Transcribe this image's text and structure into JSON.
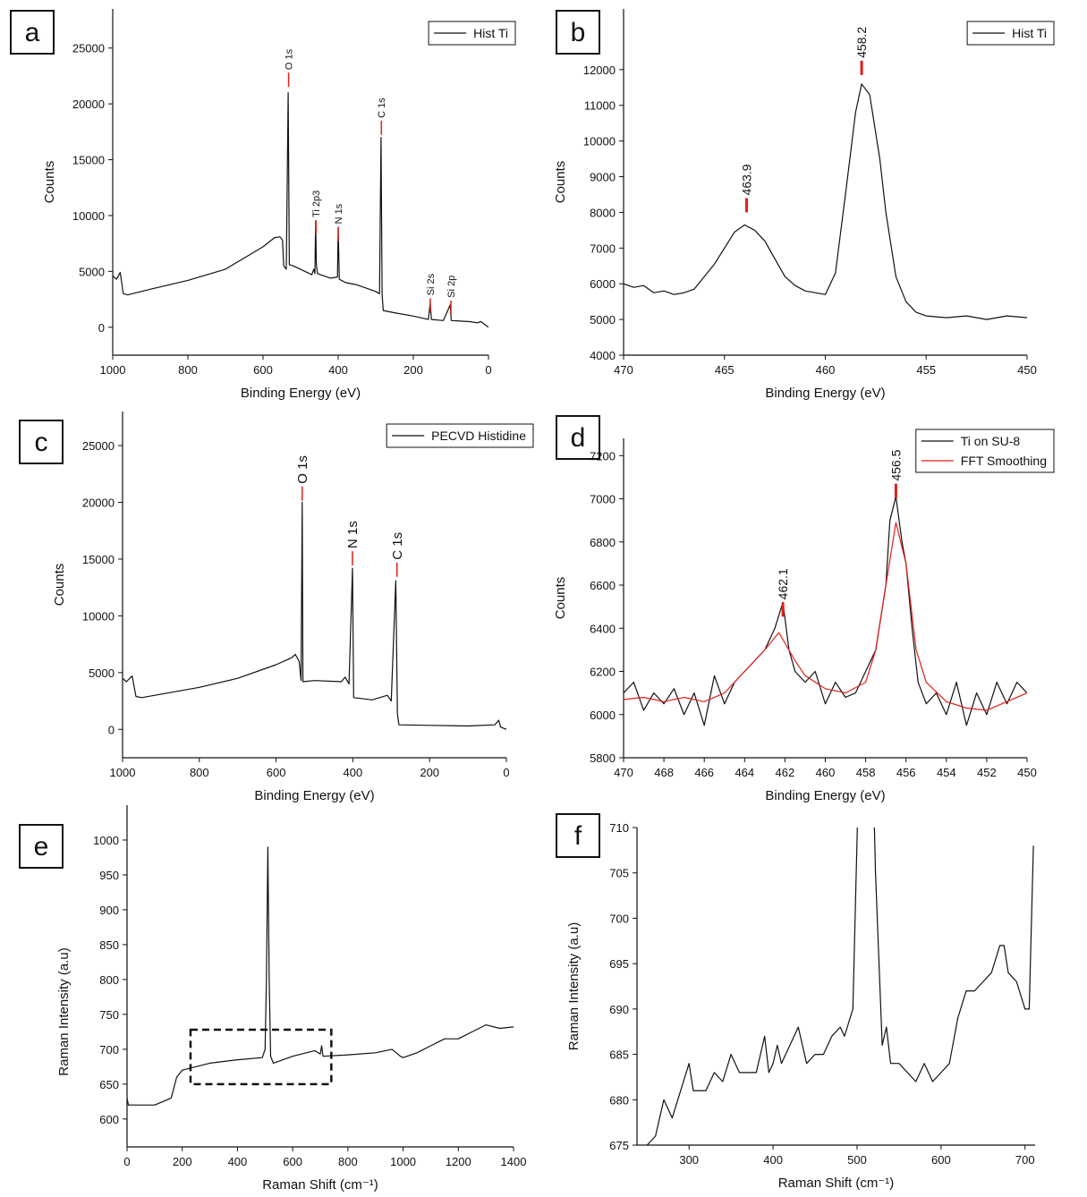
{
  "chart_data": [
    {
      "type": "line",
      "panel": "a",
      "xlabel": "Binding Energy (eV)",
      "ylabel": "Counts",
      "xlim": [
        1000,
        0
      ],
      "xticks": [
        1000,
        800,
        600,
        400,
        200,
        0
      ],
      "ylim": [
        -2500,
        28500
      ],
      "yticks": [
        0,
        5000,
        10000,
        15000,
        20000,
        25000
      ],
      "legend": "upper right",
      "peak_color": "#e0201b",
      "series": [
        {
          "name": "Hist Ti",
          "color": "#111111",
          "x": [
            1000,
            990,
            980,
            972,
            960,
            900,
            800,
            700,
            600,
            570,
            555,
            548,
            545,
            538,
            533,
            530,
            520,
            470,
            465,
            462,
            460,
            458,
            455,
            420,
            402,
            400,
            397,
            380,
            350,
            300,
            290,
            286,
            283,
            280,
            250,
            200,
            160,
            155,
            152,
            120,
            102,
            99,
            50,
            30,
            20,
            0
          ],
          "values": [
            4600,
            4300,
            4900,
            3000,
            2900,
            3400,
            4200,
            5200,
            7200,
            8000,
            8100,
            7800,
            5500,
            5200,
            21000,
            5600,
            5500,
            4700,
            5200,
            4800,
            9500,
            5600,
            4800,
            4400,
            4500,
            8900,
            4300,
            4000,
            3800,
            3200,
            3000,
            17000,
            2900,
            1500,
            1300,
            1000,
            700,
            2200,
            700,
            600,
            2000,
            600,
            500,
            400,
            500,
            0
          ]
        }
      ],
      "peaks": [
        {
          "label": "O 1s",
          "x": 532,
          "y": 22800
        },
        {
          "label": "Ti 2p3",
          "x": 459,
          "y": 9600
        },
        {
          "label": "N 1s",
          "x": 400,
          "y": 9000
        },
        {
          "label": "C 1s",
          "x": 285,
          "y": 18500
        },
        {
          "label": "Si 2s",
          "x": 155,
          "y": 2600
        },
        {
          "label": "Si 2p",
          "x": 100,
          "y": 2400
        }
      ]
    },
    {
      "type": "line",
      "panel": "b",
      "xlabel": "Binding Energy (eV)",
      "ylabel": "Counts",
      "xlim": [
        470,
        450
      ],
      "xticks": [
        470,
        465,
        460,
        455,
        450
      ],
      "ylim": [
        4000,
        13700
      ],
      "yticks": [
        4000,
        5000,
        6000,
        7000,
        8000,
        9000,
        10000,
        11000,
        12000
      ],
      "legend": "upper right",
      "peak_color": "#e0201b",
      "series": [
        {
          "name": "Hist Ti",
          "color": "#111111",
          "x": [
            470,
            469.5,
            469,
            468.5,
            468,
            467.5,
            467,
            466.5,
            466,
            465.5,
            465,
            464.5,
            464,
            463.5,
            463,
            462.5,
            462,
            461.5,
            461,
            460.5,
            460,
            459.5,
            459,
            458.5,
            458.2,
            457.8,
            457.3,
            457,
            456.5,
            456,
            455.5,
            455,
            454,
            453,
            452,
            451,
            450
          ],
          "values": [
            6000,
            5900,
            5950,
            5750,
            5800,
            5700,
            5750,
            5850,
            6200,
            6550,
            7000,
            7450,
            7650,
            7500,
            7200,
            6700,
            6200,
            5950,
            5800,
            5750,
            5700,
            6300,
            8500,
            10800,
            11600,
            11300,
            9500,
            8000,
            6200,
            5500,
            5200,
            5100,
            5050,
            5100,
            5000,
            5100,
            5050
          ]
        }
      ],
      "peaks": [
        {
          "label": "463.9",
          "x": 463.9,
          "y": 8400
        },
        {
          "label": "458.2",
          "x": 458.2,
          "y": 12250
        }
      ]
    },
    {
      "type": "line",
      "panel": "c",
      "xlabel": "Binding Energy (eV)",
      "ylabel": "Counts",
      "xlim": [
        1000,
        0
      ],
      "xticks": [
        1000,
        800,
        600,
        400,
        200,
        0
      ],
      "ylim": [
        -2500,
        28000
      ],
      "yticks": [
        0,
        5000,
        10000,
        15000,
        20000,
        25000
      ],
      "legend": "upper right",
      "peak_color": "#e0201b",
      "series": [
        {
          "name": "PECVD Histidine",
          "color": "#111111",
          "x": [
            1000,
            990,
            975,
            965,
            950,
            800,
            700,
            600,
            560,
            550,
            540,
            535,
            532,
            530,
            500,
            430,
            420,
            410,
            401,
            398,
            350,
            310,
            300,
            288,
            284,
            280,
            200,
            100,
            30,
            20,
            15,
            0
          ],
          "values": [
            4500,
            4200,
            4700,
            2900,
            2800,
            3700,
            4500,
            5700,
            6300,
            6600,
            6000,
            4300,
            20000,
            4200,
            4300,
            4200,
            4600,
            4000,
            14200,
            2800,
            2600,
            3000,
            2500,
            13100,
            1400,
            400,
            350,
            300,
            400,
            800,
            200,
            0
          ]
        }
      ],
      "peaks": [
        {
          "label": "O 1s",
          "x": 532,
          "y": 21400
        },
        {
          "label": "N 1s",
          "x": 401,
          "y": 15700
        },
        {
          "label": "C 1s",
          "x": 285,
          "y": 14700
        }
      ]
    },
    {
      "type": "line",
      "panel": "d",
      "xlabel": "Binding Energy (eV)",
      "ylabel": "Counts",
      "xlim": [
        470,
        450
      ],
      "xticks": [
        470,
        468,
        466,
        464,
        462,
        460,
        458,
        456,
        454,
        452,
        450
      ],
      "ylim": [
        5800,
        7280
      ],
      "yticks": [
        5800,
        6000,
        6200,
        6400,
        6600,
        6800,
        7000,
        7200
      ],
      "legend": "upper right",
      "peak_color": "#e0201b",
      "series": [
        {
          "name": "Ti on SU-8",
          "color": "#111111",
          "x": [
            470,
            469.5,
            469,
            468.5,
            468,
            467.5,
            467,
            466.5,
            466,
            465.5,
            465,
            464.5,
            464,
            463.5,
            463,
            462.5,
            462.1,
            461.8,
            461.5,
            461,
            460.5,
            460,
            459.5,
            459,
            458.5,
            458,
            457.5,
            457,
            456.8,
            456.5,
            456.2,
            456,
            455.7,
            455.4,
            455,
            454.5,
            454,
            453.5,
            453,
            452.5,
            452,
            451.5,
            451,
            450.5,
            450
          ],
          "values": [
            6100,
            6150,
            6020,
            6100,
            6050,
            6120,
            6000,
            6100,
            5950,
            6180,
            6050,
            6150,
            6200,
            6250,
            6300,
            6400,
            6520,
            6300,
            6200,
            6150,
            6200,
            6050,
            6150,
            6080,
            6100,
            6200,
            6300,
            6600,
            6900,
            7010,
            6800,
            6700,
            6400,
            6150,
            6050,
            6100,
            6000,
            6150,
            5950,
            6100,
            6000,
            6150,
            6050,
            6150,
            6100
          ]
        },
        {
          "name": "FFT Smoothing",
          "color": "#e0201b",
          "x": [
            470,
            469,
            468,
            467,
            466,
            465,
            464,
            463,
            462.3,
            461.5,
            461,
            460,
            459,
            458,
            457.5,
            457,
            456.5,
            456,
            455.5,
            455,
            454,
            453,
            452,
            451,
            450
          ],
          "values": [
            6070,
            6080,
            6060,
            6080,
            6060,
            6100,
            6200,
            6300,
            6380,
            6250,
            6180,
            6120,
            6100,
            6150,
            6300,
            6600,
            6890,
            6700,
            6300,
            6150,
            6060,
            6030,
            6020,
            6060,
            6100
          ]
        }
      ],
      "peaks": [
        {
          "label": "462.1",
          "x": 462.1,
          "y": 6520
        },
        {
          "label": "456.5",
          "x": 456.5,
          "y": 7070
        }
      ]
    },
    {
      "type": "line",
      "panel": "e",
      "xlabel": "Raman Shift (cm⁻¹)",
      "ylabel": "Raman Intensity (a.u)",
      "xlim": [
        0,
        1400
      ],
      "xticks": [
        0,
        200,
        400,
        600,
        800,
        1000,
        1200,
        1400
      ],
      "ylim": [
        560,
        1050
      ],
      "yticks": [
        600,
        650,
        700,
        750,
        800,
        850,
        900,
        950,
        1000
      ],
      "highlight": {
        "x": [
          230,
          740
        ],
        "y": [
          650,
          728
        ]
      },
      "series": [
        {
          "color": "#111111",
          "x": [
            0,
            5,
            100,
            160,
            180,
            200,
            300,
            400,
            490,
            500,
            505,
            510,
            515,
            520,
            530,
            600,
            680,
            700,
            705,
            710,
            800,
            900,
            960,
            990,
            1000,
            1050,
            1100,
            1150,
            1200,
            1250,
            1300,
            1350,
            1400
          ],
          "values": [
            630,
            620,
            620,
            630,
            660,
            670,
            680,
            685,
            688,
            700,
            800,
            990,
            800,
            690,
            680,
            690,
            698,
            693,
            705,
            690,
            692,
            695,
            700,
            690,
            688,
            695,
            705,
            715,
            715,
            725,
            735,
            730,
            732
          ]
        }
      ]
    },
    {
      "type": "line",
      "panel": "f",
      "xlabel": "Raman Shift (cm⁻¹)",
      "ylabel": "Raman Intensity (a.u)",
      "xlim": [
        238,
        712
      ],
      "xticks": [
        300,
        400,
        500,
        600,
        700
      ],
      "ylim": [
        675,
        710
      ],
      "yticks": [
        675,
        680,
        685,
        690,
        695,
        700,
        705,
        710
      ],
      "series": [
        {
          "color": "#111111",
          "x": [
            250,
            260,
            270,
            280,
            290,
            300,
            305,
            320,
            330,
            340,
            350,
            360,
            380,
            390,
            395,
            400,
            405,
            410,
            420,
            430,
            440,
            450,
            460,
            470,
            480,
            485,
            495,
            503,
            518,
            522,
            530,
            535,
            540,
            550,
            560,
            570,
            580,
            590,
            600,
            610,
            620,
            630,
            640,
            650,
            660,
            670,
            675,
            680,
            690,
            700,
            705,
            710
          ],
          "values": [
            675,
            676,
            680,
            678,
            681,
            684,
            681,
            681,
            683,
            682,
            685,
            683,
            683,
            687,
            683,
            684,
            686,
            684,
            686,
            688,
            684,
            685,
            685,
            687,
            688,
            687,
            690,
            720,
            720,
            705,
            686,
            688,
            684,
            684,
            683,
            682,
            684,
            682,
            683,
            684,
            689,
            692,
            692,
            693,
            694,
            697,
            697,
            694,
            693,
            690,
            690,
            708
          ]
        }
      ]
    }
  ]
}
